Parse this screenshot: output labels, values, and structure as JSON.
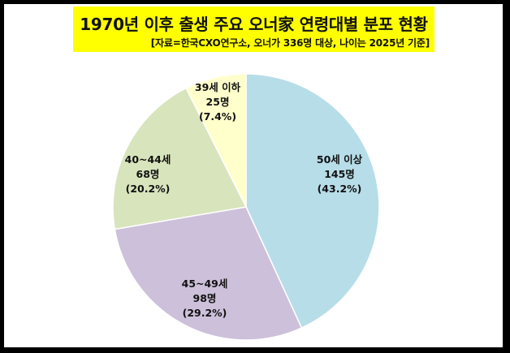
{
  "header": {
    "title": "1970년 이후 출생 주요 오너家  연령대별 분포 현황",
    "subtitle": "[자료=한국CXO연구소, 오너가 336명 대상, 나이는 2025년 기준]"
  },
  "colors": {
    "title_bg": "#FFFF00",
    "frame": "#000000",
    "slice_50_plus": "#B7DDE8",
    "slice_45_49": "#CCC0DA",
    "slice_40_44": "#D8E4BC",
    "slice_39_under": "#FFFFCC"
  },
  "slices": [
    {
      "label": "50세 이상",
      "count": "145명",
      "pct": "(43.2%)"
    },
    {
      "label": "45~49세",
      "count": "98명",
      "pct": "(29.2%)"
    },
    {
      "label": "40~44세",
      "count": "68명",
      "pct": "(20.2%)"
    },
    {
      "label": "39세 이하",
      "count": "25명",
      "pct": "(7.4%)"
    }
  ],
  "chart_data": {
    "type": "pie",
    "title": "1970년 이후 출생 주요 오너家  연령대별 분포 현황",
    "subtitle": "[자료=한국CXO연구소, 오너가 336명 대상, 나이는 2025년 기준]",
    "categories": [
      "50세 이상",
      "45~49세",
      "40~44세",
      "39세 이하"
    ],
    "values": [
      145,
      98,
      68,
      25
    ],
    "percentages": [
      43.2,
      29.2,
      20.2,
      7.4
    ],
    "unit": "명",
    "total": 336,
    "start_angle": "12 o'clock",
    "direction": "clockwise",
    "legend": "none (data labels inside slices)"
  }
}
